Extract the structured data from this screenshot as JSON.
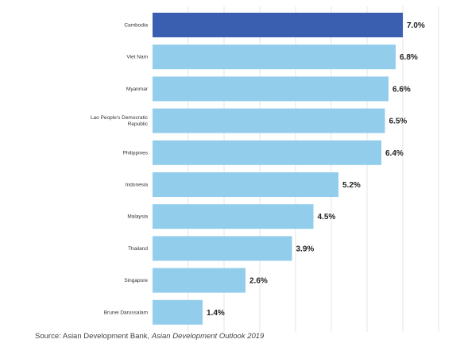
{
  "chart_data": {
    "type": "bar",
    "orientation": "horizontal",
    "categories": [
      [
        "Cambodia"
      ],
      [
        "Viet Nam"
      ],
      [
        "Myanmar"
      ],
      [
        "Lao People's Democratic",
        "Republic"
      ],
      [
        "Philippines"
      ],
      [
        "Indonesia"
      ],
      [
        "Malaysia"
      ],
      [
        "Thailand"
      ],
      [
        "Singapore"
      ],
      [
        "Brunei Darussalam"
      ]
    ],
    "values": [
      7.0,
      6.8,
      6.6,
      6.5,
      6.4,
      5.2,
      4.5,
      3.9,
      2.6,
      1.4
    ],
    "value_labels": [
      "7.0%",
      "6.8%",
      "6.6%",
      "6.5%",
      "6.4%",
      "5.2%",
      "4.5%",
      "3.9%",
      "2.6%",
      "1.4%"
    ],
    "xlim": [
      0,
      8
    ],
    "grid": true,
    "colors": {
      "highlight": "#3a5fb0",
      "bar": "#92cdec",
      "grid": "#e6e6e6"
    },
    "highlight_index": 0
  },
  "source": {
    "prefix": "Source: Asian Development Bank,",
    "title": "Asian Development Outlook 2019"
  }
}
